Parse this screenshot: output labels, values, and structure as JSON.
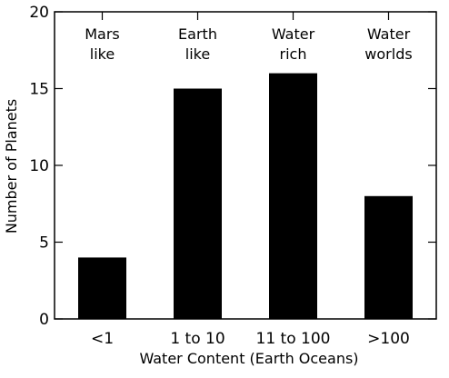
{
  "chart_data": {
    "type": "bar",
    "categories": [
      "<1",
      "1 to 10",
      "11 to 100",
      ">100"
    ],
    "values": [
      4,
      15,
      16,
      8
    ],
    "annotations": [
      [
        "Mars",
        "like"
      ],
      [
        "Earth",
        "like"
      ],
      [
        "Water",
        "rich"
      ],
      [
        "Water",
        "worlds"
      ]
    ],
    "xlabel": "Water Content (Earth Oceans)",
    "ylabel": "Number of Planets",
    "ylim": [
      0,
      20
    ],
    "yticks": [
      0,
      5,
      10,
      15,
      20
    ],
    "bar_color": "#000000",
    "grid": false
  }
}
